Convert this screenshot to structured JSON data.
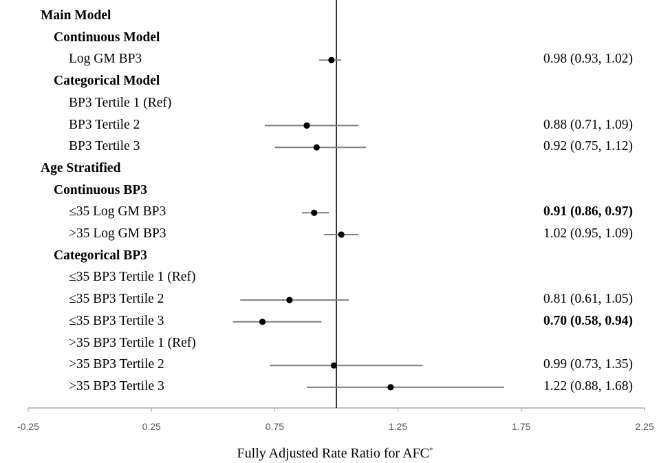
{
  "chart_data": {
    "type": "forest",
    "xlabel": "Fully Adjusted Rate Ratio for AFC",
    "xlabel_superscript": "*",
    "xlim": [
      -0.25,
      2.25
    ],
    "xticks": [
      -0.25,
      0.25,
      0.75,
      1.25,
      1.75,
      2.25
    ],
    "xtick_labels": [
      "-0.25",
      "0.25",
      "0.75",
      "1.25",
      "1.75",
      "2.25"
    ],
    "reference_line": 1.0,
    "rows": [
      {
        "label": "Main Model",
        "level": 0,
        "header": true
      },
      {
        "label": "Continuous Model",
        "level": 1,
        "header": true
      },
      {
        "label": "Log GM BP3",
        "level": 2,
        "estimate": 0.98,
        "lower": 0.93,
        "upper": 1.02,
        "text": "0.98 (0.93, 1.02)",
        "significant": false
      },
      {
        "label": "Categorical Model",
        "level": 1,
        "header": true
      },
      {
        "label": "BP3 Tertile 1 (Ref)",
        "level": 2
      },
      {
        "label": "BP3 Tertile 2",
        "level": 2,
        "estimate": 0.88,
        "lower": 0.71,
        "upper": 1.09,
        "text": "0.88 (0.71, 1.09)",
        "significant": false
      },
      {
        "label": "BP3 Tertile 3",
        "level": 2,
        "estimate": 0.92,
        "lower": 0.75,
        "upper": 1.12,
        "text": "0.92 (0.75, 1.12)",
        "significant": false
      },
      {
        "label": "Age Stratified",
        "level": 0,
        "header": true
      },
      {
        "label": "Continuous BP3",
        "level": 1,
        "header": true
      },
      {
        "label": "≤35 Log GM BP3",
        "level": 2,
        "estimate": 0.91,
        "lower": 0.86,
        "upper": 0.97,
        "text": "0.91 (0.86, 0.97)",
        "significant": true
      },
      {
        "label": ">35 Log GM BP3",
        "level": 2,
        "estimate": 1.02,
        "lower": 0.95,
        "upper": 1.09,
        "text": "1.02 (0.95, 1.09)",
        "significant": false
      },
      {
        "label": "Categorical BP3",
        "level": 1,
        "header": true
      },
      {
        "label": "≤35 BP3 Tertile 1 (Ref)",
        "level": 2
      },
      {
        "label": "≤35 BP3 Tertile 2",
        "level": 2,
        "estimate": 0.81,
        "lower": 0.61,
        "upper": 1.05,
        "text": "0.81 (0.61, 1.05)",
        "significant": false
      },
      {
        "label": "≤35 BP3 Tertile 3",
        "level": 2,
        "estimate": 0.7,
        "lower": 0.58,
        "upper": 0.94,
        "text": "0.70 (0.58, 0.94)",
        "significant": true
      },
      {
        "label": ">35 BP3 Tertile 1 (Ref)",
        "level": 2
      },
      {
        "label": ">35 BP3 Tertile 2",
        "level": 2,
        "estimate": 0.99,
        "lower": 0.73,
        "upper": 1.35,
        "text": "0.99 (0.73, 1.35)",
        "significant": false
      },
      {
        "label": ">35 BP3 Tertile 3",
        "level": 2,
        "estimate": 1.22,
        "lower": 0.88,
        "upper": 1.68,
        "text": "1.22 (0.88, 1.68)",
        "significant": false
      }
    ]
  }
}
